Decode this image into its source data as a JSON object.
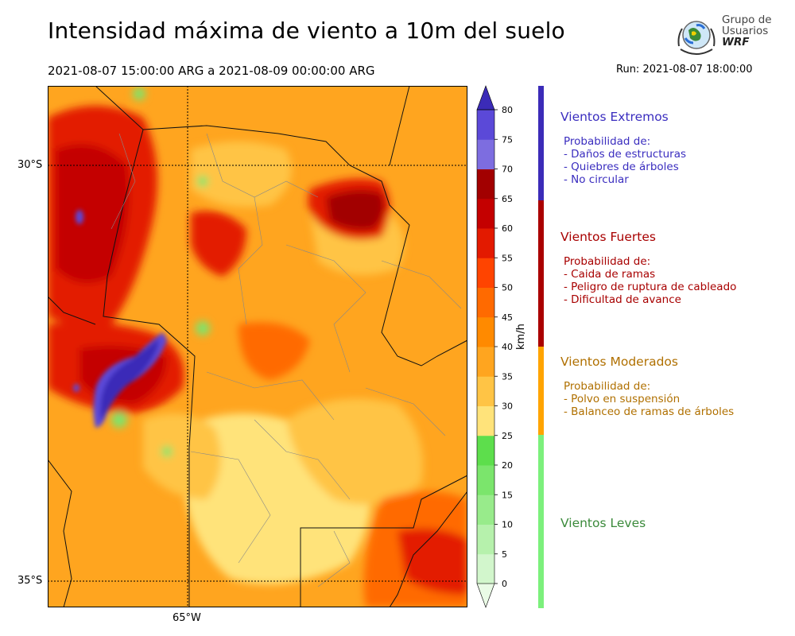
{
  "header": {
    "title": "Intensidad máxima de viento a 10m del suelo",
    "period": "2021-08-07 15:00:00 ARG  a  2021-08-09 00:00:00 ARG",
    "run": "Run: 2021-08-07 18:00:00"
  },
  "logo": {
    "line1": "Grupo de",
    "line2": "Usuarios",
    "line3": "WRF"
  },
  "map": {
    "lat_labels": [
      "30°S",
      "35°S"
    ],
    "lon_labels": [
      "65°W"
    ]
  },
  "colorbar": {
    "unit": "km/h",
    "ticks": [
      "0",
      "5",
      "10",
      "15",
      "20",
      "25",
      "30",
      "35",
      "40",
      "45",
      "50",
      "55",
      "60",
      "65",
      "70",
      "75",
      "80"
    ],
    "colors": [
      "#eafbe6",
      "#d2f6cc",
      "#b6f1ac",
      "#98eb8b",
      "#7be56c",
      "#5dde4c",
      "#ffe37a",
      "#ffc445",
      "#ffa51f",
      "#ff8a00",
      "#ff6a00",
      "#ff4400",
      "#e31a00",
      "#c40000",
      "#a20000",
      "#7d6de0",
      "#5b49d8",
      "#3b2bb8"
    ],
    "min": 0,
    "max": 80
  },
  "categories": [
    {
      "title": "Vientos Extremos",
      "color": "#3a2dbf",
      "bar_color": "#3b2bb8",
      "lines": [
        "Probabilidad de:",
        "- Daños de estructuras",
        "- Quiebres de árboles",
        "- No circular"
      ]
    },
    {
      "title": "Vientos Fuertes",
      "color": "#a80000",
      "bar_color": "#aa0000",
      "lines": [
        "Probabilidad de:",
        "- Caida de ramas",
        "- Peligro de ruptura de cableado",
        "- Dificultad de avance"
      ]
    },
    {
      "title": "Vientos Moderados",
      "color": "#b07000",
      "bar_color": "#ffa400",
      "lines": [
        "Probabilidad de:",
        "- Polvo en suspensión",
        "- Balanceo de ramas de árboles"
      ]
    },
    {
      "title": "Vientos Leves",
      "color": "#3b8a3b",
      "bar_color": "#7cf07c",
      "lines": []
    }
  ]
}
